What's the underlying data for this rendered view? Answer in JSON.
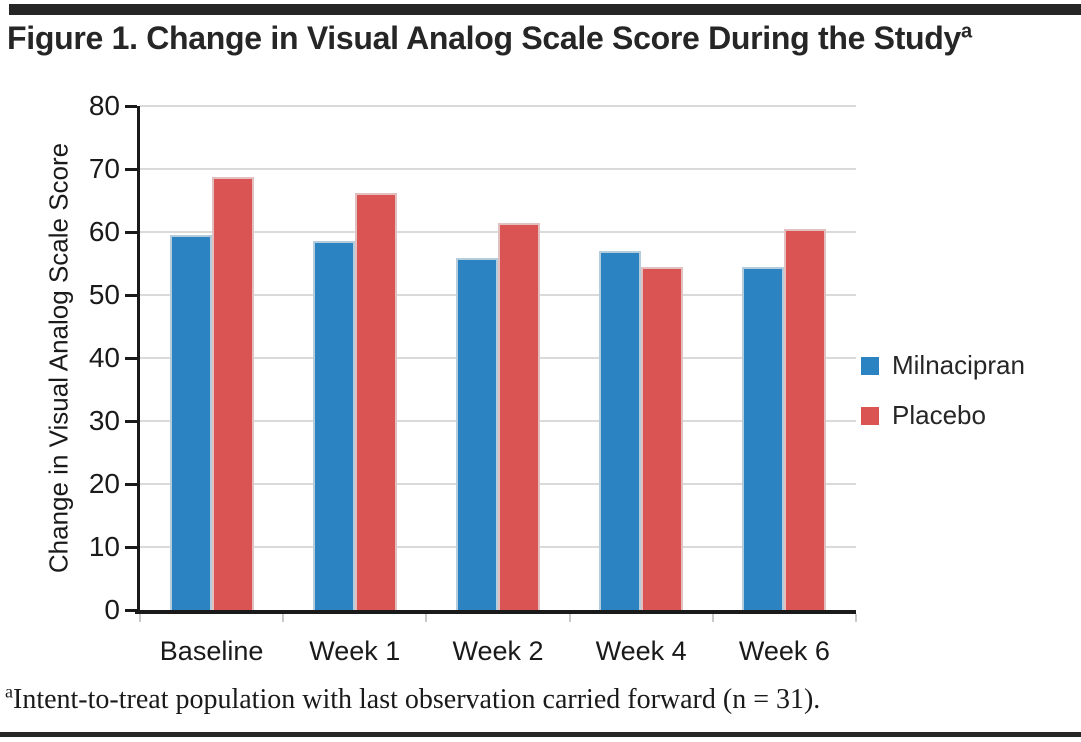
{
  "header": {
    "title": "Figure 1. Change in Visual Analog Scale Score During the Study",
    "title_superscript": "a"
  },
  "chart_data": {
    "type": "bar",
    "categories": [
      "Baseline",
      "Week 1",
      "Week 2",
      "Week 4",
      "Week 6"
    ],
    "series": [
      {
        "name": "Milnacipran",
        "color": "#2b83c2",
        "values": [
          59.5,
          58.6,
          55.8,
          57.0,
          54.5
        ]
      },
      {
        "name": "Placebo",
        "color": "#d95452",
        "values": [
          68.8,
          66.2,
          61.5,
          54.5,
          60.5
        ]
      }
    ],
    "title": "",
    "xlabel": "",
    "ylabel": "Change in Visual Analog Scale Score",
    "ylim": [
      0,
      80
    ],
    "ytick_step": 10,
    "yticks": [
      0,
      10,
      20,
      30,
      40,
      50,
      60,
      70,
      80
    ],
    "grid": true,
    "legend_position": "right-middle"
  },
  "footnote": {
    "superscript": "a",
    "text": "Intent-to-treat population with last observation carried forward (n = 31)."
  }
}
